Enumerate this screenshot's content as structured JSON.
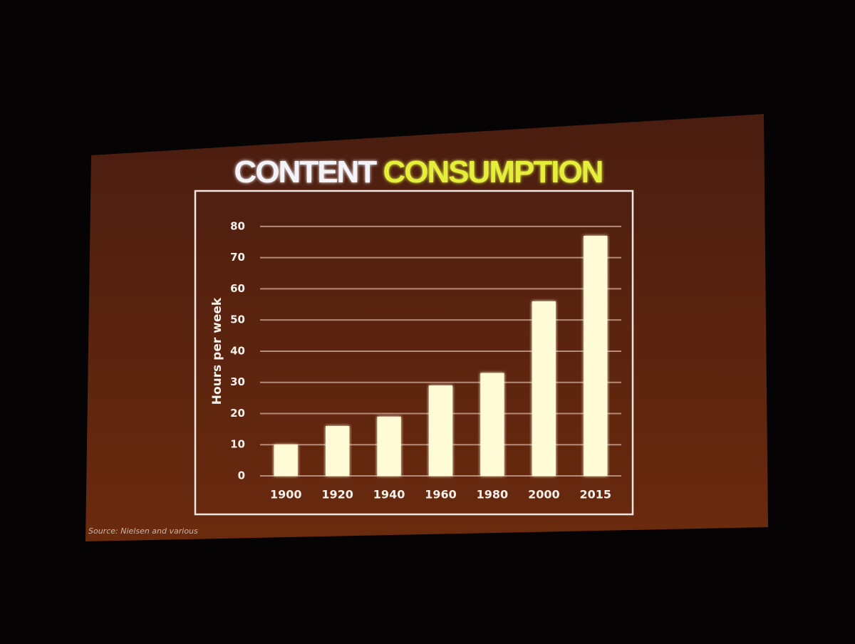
{
  "chart_data": {
    "type": "bar",
    "title_parts": [
      {
        "text": "CONTENT",
        "color": "#f4f4f8"
      },
      {
        "text": "CONSUMPTION",
        "color": "#e4ee3a"
      }
    ],
    "ylabel": "Hours per week",
    "categories": [
      "1900",
      "1920",
      "1940",
      "1960",
      "1980",
      "2000",
      "2015"
    ],
    "values": [
      10,
      16,
      19,
      29,
      33,
      56,
      77
    ],
    "color": "#fffbd6",
    "ylim": [
      0,
      85
    ],
    "yticks": [
      0,
      10,
      20,
      30,
      40,
      50,
      60,
      70,
      80
    ],
    "grid": true,
    "source": "Source: Nielsen and various"
  }
}
